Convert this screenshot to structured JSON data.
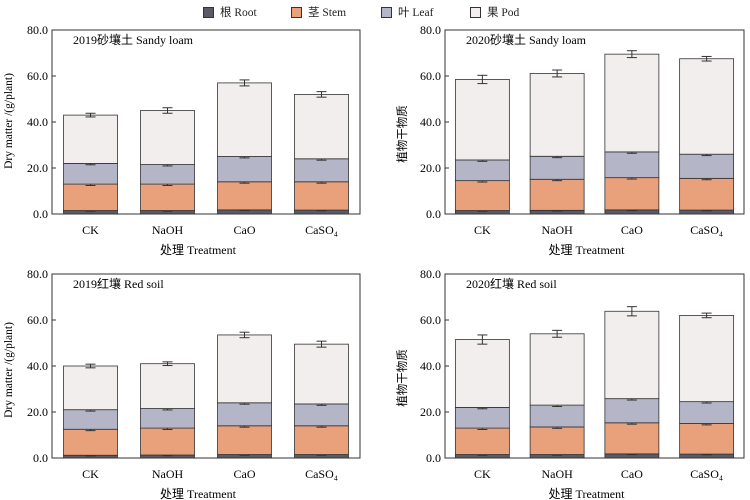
{
  "legend": {
    "items": [
      {
        "label": "根 Root",
        "color": "#5a5a66"
      },
      {
        "label": "茎 Stem",
        "color": "#e8a17b"
      },
      {
        "label": "叶 Leaf",
        "color": "#b4b5c6"
      },
      {
        "label": "果 Pod",
        "color": "#f2eeed"
      }
    ]
  },
  "chart_data": [
    {
      "type": "bar",
      "stacked": true,
      "title": "2019砂壤土 Sandy loam",
      "xlabel": "处理 Treatment",
      "ylabel": "Dry matter /(g/plant)",
      "categories": [
        "CK",
        "NaOH",
        "CaO",
        "CaSO₄"
      ],
      "ylim": [
        0,
        80
      ],
      "yticks": [
        "0.0",
        "20.0",
        "40.0",
        "60.0",
        "80.0"
      ],
      "series": [
        {
          "name": "根 Root",
          "values": [
            1.5,
            1.5,
            1.8,
            1.7
          ],
          "errors": [
            0.3,
            0.3,
            0.3,
            0.3
          ]
        },
        {
          "name": "茎 Stem",
          "values": [
            11.5,
            11.5,
            12.2,
            12.3
          ],
          "errors": [
            0.6,
            0.6,
            0.6,
            0.6
          ]
        },
        {
          "name": "叶 Leaf",
          "values": [
            9,
            8.5,
            11,
            10
          ],
          "errors": [
            0.6,
            0.6,
            0.6,
            0.6
          ]
        },
        {
          "name": "果 Pod",
          "values": [
            21,
            23.5,
            32,
            28
          ],
          "errors": [
            0.8,
            1.2,
            1.3,
            1.2
          ]
        }
      ]
    },
    {
      "type": "bar",
      "stacked": true,
      "title": "2020砂壤土 Sandy loam",
      "xlabel": "处理 Treatment",
      "ylabel": "植物干物质",
      "categories": [
        "CK",
        "NaOH",
        "CaO",
        "CaSO₄"
      ],
      "ylim": [
        0,
        80
      ],
      "yticks": [
        "0.0",
        "20.0",
        "40.0",
        "60.0",
        "80.0"
      ],
      "series": [
        {
          "name": "根 Root",
          "values": [
            1.5,
            1.6,
            1.8,
            1.7
          ],
          "errors": [
            0.3,
            0.3,
            0.3,
            0.3
          ]
        },
        {
          "name": "茎 Stem",
          "values": [
            13,
            13.5,
            14,
            13.8
          ],
          "errors": [
            0.6,
            0.6,
            0.6,
            0.6
          ]
        },
        {
          "name": "叶 Leaf",
          "values": [
            9,
            10,
            11.2,
            10.5
          ],
          "errors": [
            0.6,
            0.6,
            0.6,
            0.6
          ]
        },
        {
          "name": "果 Pod",
          "values": [
            35,
            36,
            42.5,
            41.5
          ],
          "errors": [
            1.8,
            1.5,
            1.5,
            1.0
          ]
        }
      ]
    },
    {
      "type": "bar",
      "stacked": true,
      "title": "2019红壤 Red soil",
      "xlabel": "处理 Treatment",
      "ylabel": "Dry matter /(g/plant)",
      "categories": [
        "CK",
        "NaOH",
        "CaO",
        "CaSO₄"
      ],
      "ylim": [
        0,
        80
      ],
      "yticks": [
        "0.0",
        "20.0",
        "40.0",
        "60.0",
        "80.0"
      ],
      "series": [
        {
          "name": "根 Root",
          "values": [
            1.2,
            1.3,
            1.5,
            1.5
          ],
          "errors": [
            0.3,
            0.3,
            0.3,
            0.3
          ]
        },
        {
          "name": "茎 Stem",
          "values": [
            11.3,
            11.7,
            12.5,
            12.5
          ],
          "errors": [
            0.6,
            0.6,
            0.6,
            0.6
          ]
        },
        {
          "name": "叶 Leaf",
          "values": [
            8.5,
            8.5,
            10,
            9.5
          ],
          "errors": [
            0.6,
            0.6,
            0.6,
            0.6
          ]
        },
        {
          "name": "果 Pod",
          "values": [
            19,
            19.5,
            29.5,
            26
          ],
          "errors": [
            0.8,
            0.8,
            1.2,
            1.3
          ]
        }
      ]
    },
    {
      "type": "bar",
      "stacked": true,
      "title": "2020红壤 Red soil",
      "xlabel": "处理 Treatment",
      "ylabel": "植物干物质",
      "categories": [
        "CK",
        "NaOH",
        "CaO",
        "CaSO₄"
      ],
      "ylim": [
        0,
        80
      ],
      "yticks": [
        "0.0",
        "20.0",
        "40.0",
        "60.0",
        "80.0"
      ],
      "series": [
        {
          "name": "根 Root",
          "values": [
            1.5,
            1.5,
            1.8,
            1.7
          ],
          "errors": [
            0.3,
            0.3,
            0.3,
            0.3
          ]
        },
        {
          "name": "茎 Stem",
          "values": [
            11.5,
            12,
            13.5,
            13.3
          ],
          "errors": [
            0.6,
            0.6,
            0.6,
            0.6
          ]
        },
        {
          "name": "叶 Leaf",
          "values": [
            9,
            9.5,
            10.5,
            9.5
          ],
          "errors": [
            0.6,
            0.6,
            0.6,
            0.6
          ]
        },
        {
          "name": "果 Pod",
          "values": [
            29.5,
            31,
            38,
            37.5
          ],
          "errors": [
            2.0,
            1.5,
            2.0,
            1.0
          ]
        }
      ]
    }
  ]
}
